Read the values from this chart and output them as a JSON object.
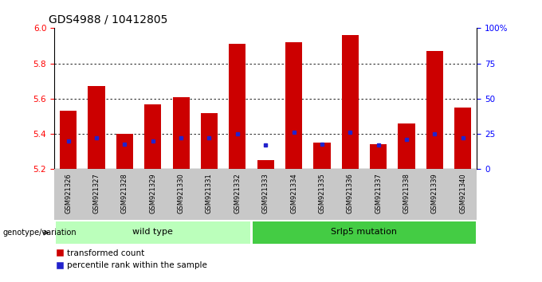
{
  "title": "GDS4988 / 10412805",
  "samples": [
    "GSM921326",
    "GSM921327",
    "GSM921328",
    "GSM921329",
    "GSM921330",
    "GSM921331",
    "GSM921332",
    "GSM921333",
    "GSM921334",
    "GSM921335",
    "GSM921336",
    "GSM921337",
    "GSM921338",
    "GSM921339",
    "GSM921340"
  ],
  "transformed_counts": [
    5.53,
    5.67,
    5.4,
    5.57,
    5.61,
    5.52,
    5.91,
    5.25,
    5.92,
    5.35,
    5.96,
    5.34,
    5.46,
    5.87,
    5.55
  ],
  "percentile_ranks": [
    20,
    22,
    18,
    20,
    22,
    22,
    25,
    17,
    26,
    18,
    26,
    17,
    21,
    25,
    22
  ],
  "ylim_left": [
    5.2,
    6.0
  ],
  "ylim_right": [
    0,
    100
  ],
  "yticks_left": [
    5.2,
    5.4,
    5.6,
    5.8,
    6.0
  ],
  "yticks_right": [
    0,
    25,
    50,
    75,
    100
  ],
  "ytick_labels_right": [
    "0",
    "25",
    "50",
    "75",
    "100%"
  ],
  "bar_color": "#cc0000",
  "percentile_color": "#2222cc",
  "tick_area_color": "#c8c8c8",
  "group1_label": "wild type",
  "group2_label": "Srlp5 mutation",
  "group1_indices": [
    0,
    6
  ],
  "group2_indices": [
    7,
    14
  ],
  "group1_color": "#bbffbb",
  "group2_color": "#44cc44",
  "legend_label1": "transformed count",
  "legend_label2": "percentile rank within the sample",
  "genotype_label": "genotype/variation",
  "dotted_gridlines": [
    5.4,
    5.6,
    5.8
  ]
}
